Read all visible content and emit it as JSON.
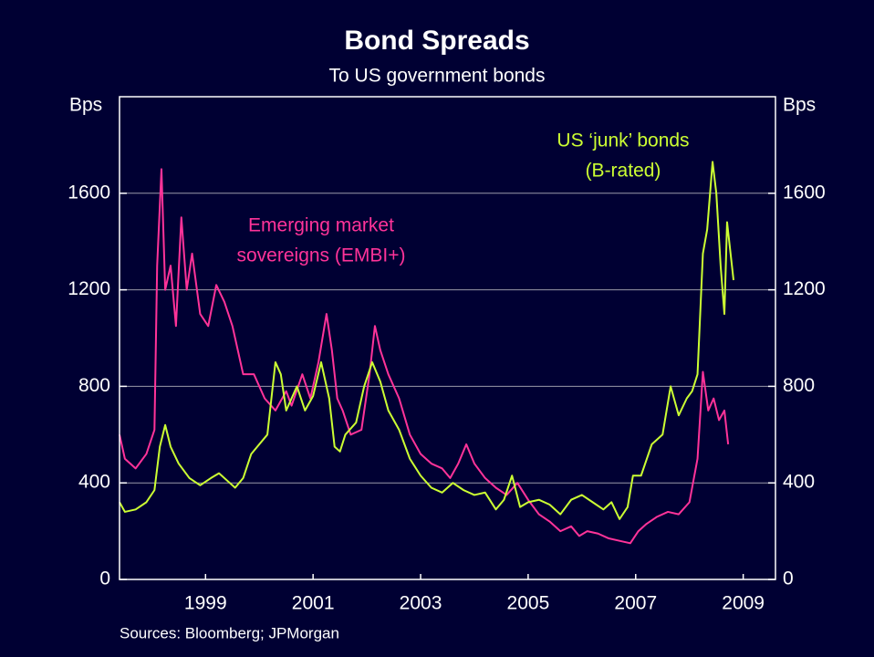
{
  "chart_data": {
    "type": "line",
    "title": "Bond Spreads",
    "subtitle": "To US government bonds",
    "y_label": "Bps",
    "y2_label": "Bps",
    "source": "Sources: Bloomberg; JPMorgan",
    "xlim": [
      1997.9,
      2010.1
    ],
    "xticks": [
      {
        "value": 1999.5,
        "label": "1999"
      },
      {
        "value": 2001.5,
        "label": "2001"
      },
      {
        "value": 2003.5,
        "label": "2003"
      },
      {
        "value": 2005.5,
        "label": "2005"
      },
      {
        "value": 2007.5,
        "label": "2007"
      },
      {
        "value": 2009.5,
        "label": "2009"
      }
    ],
    "ylim": [
      0,
      2000
    ],
    "yticks": [
      0,
      400,
      800,
      1200,
      1600
    ],
    "y2lim": [
      0,
      2000
    ],
    "y2ticks": [
      0,
      400,
      800,
      1200,
      1600
    ],
    "grid": true,
    "series": [
      {
        "name_lines": [
          "Emerging market",
          "sovereigns (EMBI+)"
        ],
        "color": "#ff3399",
        "x": [
          1997.9,
          1998.0,
          1998.2,
          1998.4,
          1998.55,
          1998.6,
          1998.68,
          1998.75,
          1998.85,
          1998.95,
          1999.05,
          1999.15,
          1999.25,
          1999.4,
          1999.55,
          1999.7,
          1999.85,
          2000.0,
          2000.2,
          2000.4,
          2000.6,
          2000.8,
          2001.0,
          2001.1,
          2001.3,
          2001.45,
          2001.6,
          2001.75,
          2001.85,
          2001.95,
          2002.05,
          2002.2,
          2002.4,
          2002.55,
          2002.65,
          2002.75,
          2002.9,
          2003.1,
          2003.3,
          2003.5,
          2003.7,
          2003.9,
          2004.05,
          2004.2,
          2004.35,
          2004.5,
          2004.7,
          2004.9,
          2005.1,
          2005.3,
          2005.5,
          2005.7,
          2005.9,
          2006.1,
          2006.3,
          2006.45,
          2006.6,
          2006.8,
          2007.0,
          2007.2,
          2007.4,
          2007.55,
          2007.7,
          2007.9,
          2008.1,
          2008.3,
          2008.5,
          2008.65,
          2008.75,
          2008.85,
          2008.95,
          2009.05,
          2009.15,
          2009.22
        ],
        "values": [
          600,
          500,
          460,
          520,
          620,
          1300,
          1700,
          1200,
          1300,
          1050,
          1500,
          1200,
          1350,
          1100,
          1050,
          1220,
          1150,
          1050,
          850,
          850,
          750,
          700,
          780,
          720,
          850,
          750,
          900,
          1100,
          950,
          750,
          700,
          600,
          620,
          850,
          1050,
          950,
          850,
          750,
          600,
          520,
          480,
          460,
          420,
          480,
          560,
          480,
          420,
          380,
          350,
          400,
          330,
          270,
          240,
          200,
          220,
          180,
          200,
          190,
          170,
          160,
          150,
          200,
          230,
          260,
          280,
          270,
          320,
          500,
          860,
          700,
          750,
          660,
          700,
          560
        ]
      },
      {
        "name_lines": [
          "US ‘junk’ bonds",
          "(B-rated)"
        ],
        "color": "#ccff33",
        "x": [
          1997.9,
          1998.0,
          1998.2,
          1998.4,
          1998.55,
          1998.65,
          1998.75,
          1998.85,
          1999.0,
          1999.2,
          1999.4,
          1999.6,
          1999.75,
          1999.9,
          2000.05,
          2000.2,
          2000.35,
          2000.5,
          2000.65,
          2000.8,
          2000.9,
          2001.0,
          2001.2,
          2001.35,
          2001.5,
          2001.65,
          2001.8,
          2001.9,
          2002.0,
          2002.1,
          2002.3,
          2002.45,
          2002.6,
          2002.75,
          2002.9,
          2003.1,
          2003.3,
          2003.5,
          2003.7,
          2003.9,
          2004.1,
          2004.3,
          2004.5,
          2004.7,
          2004.9,
          2005.05,
          2005.2,
          2005.35,
          2005.5,
          2005.7,
          2005.9,
          2006.1,
          2006.3,
          2006.5,
          2006.7,
          2006.9,
          2007.05,
          2007.2,
          2007.35,
          2007.45,
          2007.6,
          2007.8,
          2008.0,
          2008.15,
          2008.3,
          2008.45,
          2008.55,
          2008.65,
          2008.75,
          2008.83,
          2008.93,
          2009.0,
          2009.08,
          2009.15,
          2009.2,
          2009.28,
          2009.32
        ],
        "values": [
          320,
          280,
          290,
          320,
          370,
          550,
          640,
          550,
          480,
          420,
          390,
          420,
          440,
          410,
          380,
          420,
          520,
          560,
          600,
          900,
          850,
          700,
          800,
          700,
          760,
          900,
          750,
          550,
          530,
          600,
          650,
          800,
          900,
          820,
          700,
          620,
          500,
          430,
          380,
          360,
          400,
          370,
          350,
          360,
          290,
          330,
          430,
          300,
          320,
          330,
          310,
          270,
          330,
          350,
          320,
          290,
          320,
          250,
          300,
          430,
          430,
          560,
          600,
          800,
          680,
          750,
          780,
          850,
          1350,
          1450,
          1730,
          1600,
          1300,
          1100,
          1480,
          1320,
          1240
        ]
      }
    ]
  }
}
